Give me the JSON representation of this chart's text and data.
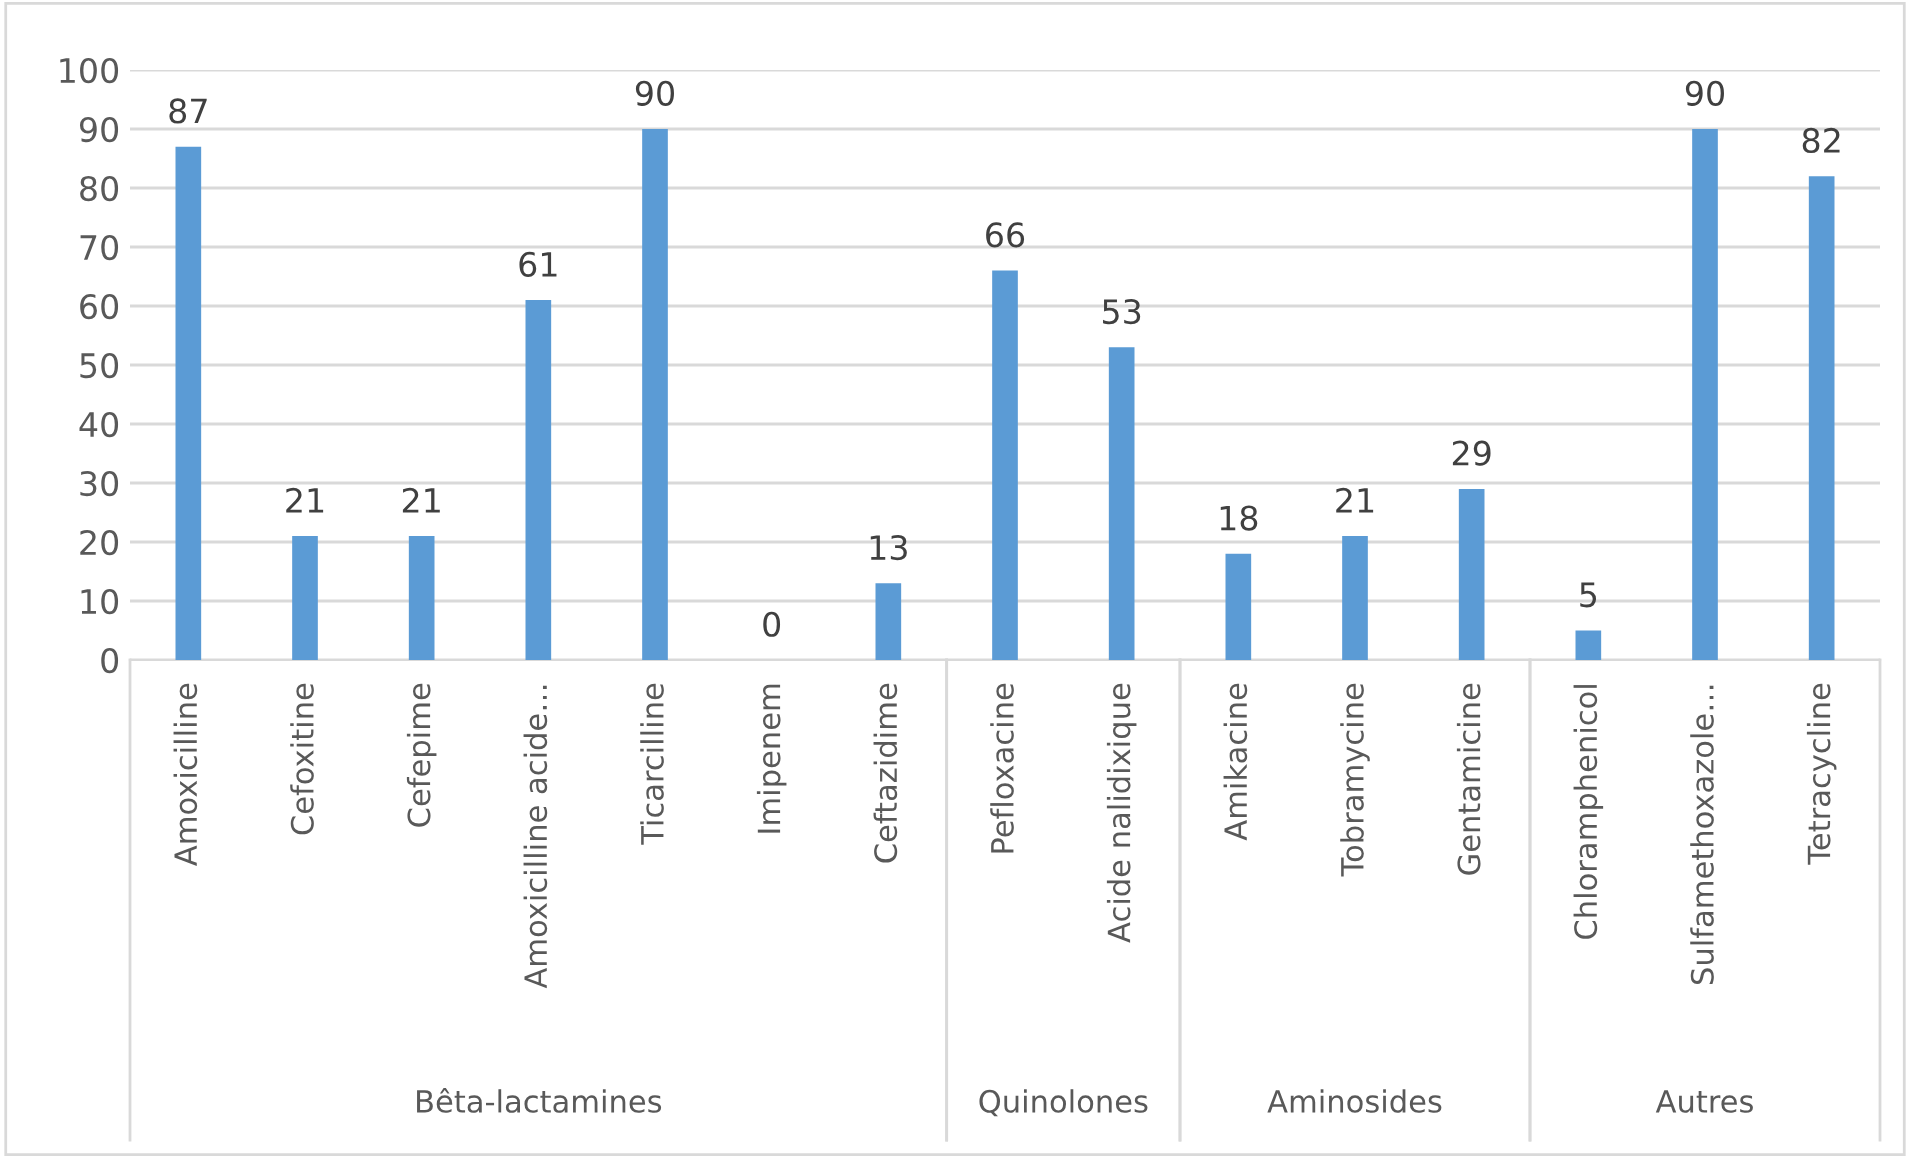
{
  "chart_data": {
    "type": "bar",
    "categories": [
      "Amoxicilline",
      "Cefoxitine",
      "Cefepime",
      "Amoxicilline acide…",
      "Ticarcilline",
      "Imipenem",
      "Ceftazidime",
      "Pefloxacine",
      "Acide nalidixique",
      "Amikacine",
      "Tobramycine",
      "Gentamicine",
      "Chloramphenicol",
      "Sulfamethoxazole…",
      "Tetracycline"
    ],
    "values": [
      87,
      21,
      21,
      61,
      90,
      0,
      13,
      66,
      53,
      18,
      21,
      29,
      5,
      90,
      82
    ],
    "color": "#5b9bd5",
    "ylim": [
      0,
      100
    ],
    "yticks": [
      0,
      10,
      20,
      30,
      40,
      50,
      60,
      70,
      80,
      90,
      100
    ],
    "grid": "y",
    "data_labels": true,
    "annotations": [
      "Bêta-lactamines",
      "Quinolones",
      "Aminosides",
      "Autres"
    ]
  }
}
